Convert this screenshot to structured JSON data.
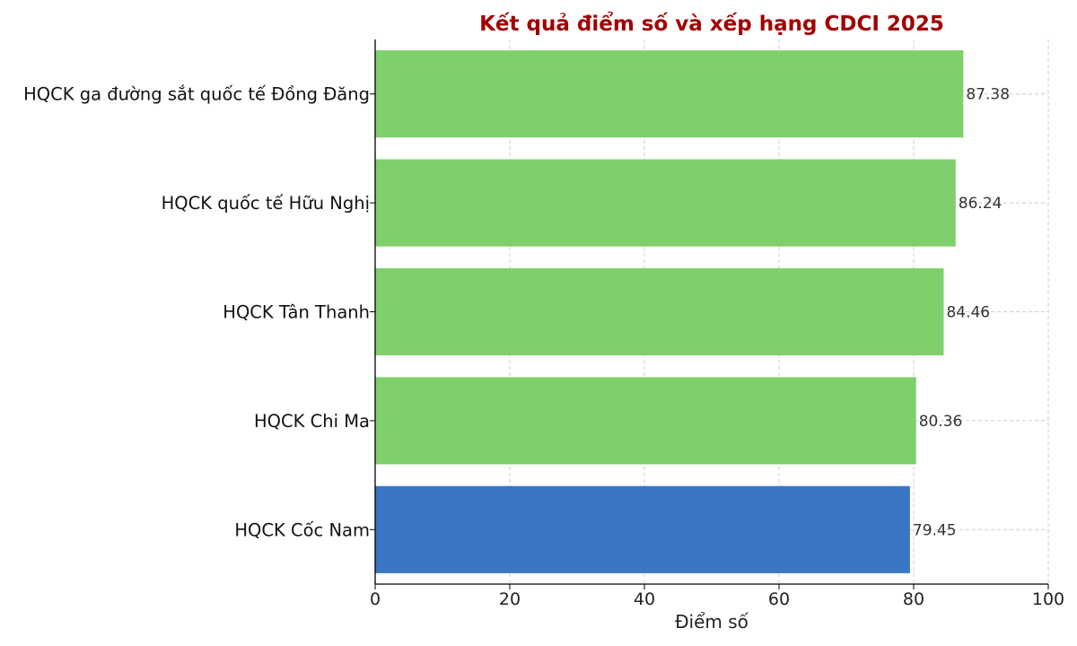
{
  "chart_data": {
    "type": "bar",
    "orientation": "horizontal",
    "title": "Kết quả điểm số và xếp hạng CDCI 2025",
    "xlabel": "Điểm số",
    "ylabel": "",
    "xlim": [
      0,
      100
    ],
    "xticks": [
      0,
      20,
      40,
      60,
      80,
      100
    ],
    "grid": true,
    "categories": [
      "HQCK ga đường sắt quốc tế Đồng Đăng",
      "HQCK quốc tế Hữu Nghị",
      "HQCK Tân Thanh",
      "HQCK Chi Ma",
      "HQCK Cốc Nam"
    ],
    "values": [
      87.38,
      86.24,
      84.46,
      80.36,
      79.45
    ],
    "value_labels": [
      "87.38",
      "86.24",
      "84.46",
      "80.36",
      "79.45"
    ],
    "bar_colors": [
      "#7fcf6c",
      "#7fcf6c",
      "#7fcf6c",
      "#7fcf6c",
      "#3a76c4"
    ],
    "title_color": "#a00000"
  }
}
